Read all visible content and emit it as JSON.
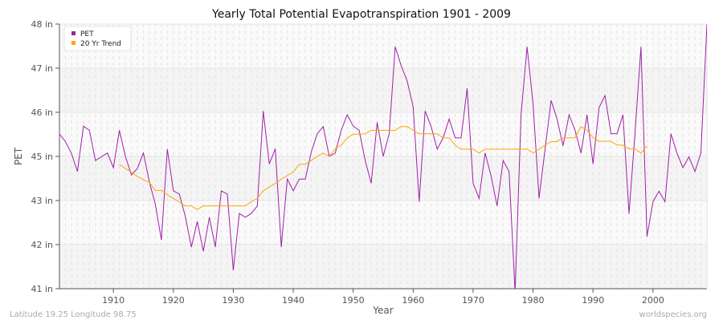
{
  "chart_data": {
    "type": "line",
    "title": "Yearly Total Potential Evapotranspiration 1901 - 2009",
    "xlabel": "Year",
    "ylabel": "PET",
    "xlim": [
      1901,
      2009
    ],
    "ylim": [
      41,
      48
    ],
    "xticks": [
      1910,
      1920,
      1930,
      1940,
      1950,
      1960,
      1970,
      1980,
      1990,
      2000
    ],
    "yticks": [
      {
        "value": 48,
        "label": "48 in"
      },
      {
        "value": 46.833,
        "label": "47 in"
      },
      {
        "value": 45.667,
        "label": "46 in"
      },
      {
        "value": 44.5,
        "label": "45 in"
      },
      {
        "value": 43.333,
        "label": "43 in"
      },
      {
        "value": 42.167,
        "label": "42 in"
      },
      {
        "value": 41,
        "label": "41 in"
      }
    ],
    "grid": true,
    "legend_position": "top-left",
    "series": [
      {
        "name": "PET",
        "color": "#a020a8",
        "x_start": 1901,
        "values": [
          45.09,
          44.89,
          44.58,
          44.1,
          45.3,
          45.19,
          44.39,
          44.49,
          44.59,
          44.2,
          45.19,
          44.5,
          44.01,
          44.18,
          44.59,
          43.83,
          43.23,
          42.29,
          44.69,
          43.59,
          43.5,
          42.91,
          42.1,
          42.78,
          41.99,
          42.89,
          42.1,
          43.59,
          43.5,
          41.49,
          42.99,
          42.89,
          42.99,
          43.19,
          45.7,
          44.3,
          44.7,
          42.1,
          43.9,
          43.59,
          43.9,
          43.9,
          44.61,
          45.1,
          45.29,
          44.5,
          44.59,
          45.19,
          45.6,
          45.3,
          45.19,
          44.39,
          43.79,
          45.4,
          44.5,
          45.1,
          47.4,
          46.9,
          46.49,
          45.81,
          43.3,
          45.7,
          45.29,
          44.69,
          44.99,
          45.49,
          44.99,
          44.99,
          46.3,
          43.79,
          43.39,
          44.59,
          43.98,
          43.19,
          44.39,
          44.1,
          40.9,
          45.6,
          47.4,
          45.88,
          43.39,
          44.69,
          45.98,
          45.49,
          44.78,
          45.6,
          45.19,
          44.59,
          45.6,
          44.3,
          45.79,
          46.11,
          45.1,
          45.1,
          45.6,
          42.98,
          45.1,
          47.4,
          42.38,
          43.3,
          43.58,
          43.3,
          45.1,
          44.59,
          44.2,
          44.49,
          44.1,
          44.59,
          48.0
        ]
      },
      {
        "name": "20 Yr Trend",
        "color": "#ffa500",
        "x_start": 1911,
        "values": [
          44.29,
          44.18,
          44.08,
          43.97,
          43.88,
          43.81,
          43.6,
          43.6,
          43.48,
          43.39,
          43.29,
          43.19,
          43.19,
          43.1,
          43.19,
          43.19,
          43.19,
          43.19,
          43.19,
          43.19,
          43.19,
          43.19,
          43.3,
          43.39,
          43.59,
          43.69,
          43.79,
          43.9,
          43.99,
          44.09,
          44.29,
          44.29,
          44.39,
          44.5,
          44.59,
          44.5,
          44.7,
          44.8,
          44.99,
          45.09,
          45.09,
          45.1,
          45.19,
          45.19,
          45.19,
          45.19,
          45.19,
          45.29,
          45.29,
          45.19,
          45.1,
          45.1,
          45.1,
          45.1,
          44.99,
          44.99,
          44.8,
          44.69,
          44.69,
          44.69,
          44.59,
          44.69,
          44.69,
          44.69,
          44.69,
          44.69,
          44.69,
          44.69,
          44.69,
          44.59,
          44.69,
          44.8,
          44.89,
          44.89,
          44.99,
          44.99,
          44.99,
          45.29,
          45.19,
          44.99,
          44.9,
          44.9,
          44.9,
          44.8,
          44.8,
          44.7,
          44.7,
          44.59,
          44.78
        ]
      }
    ]
  },
  "footer": {
    "location": "Latitude 19.25 Longitude 98.75",
    "source": "worldspecies.org"
  }
}
